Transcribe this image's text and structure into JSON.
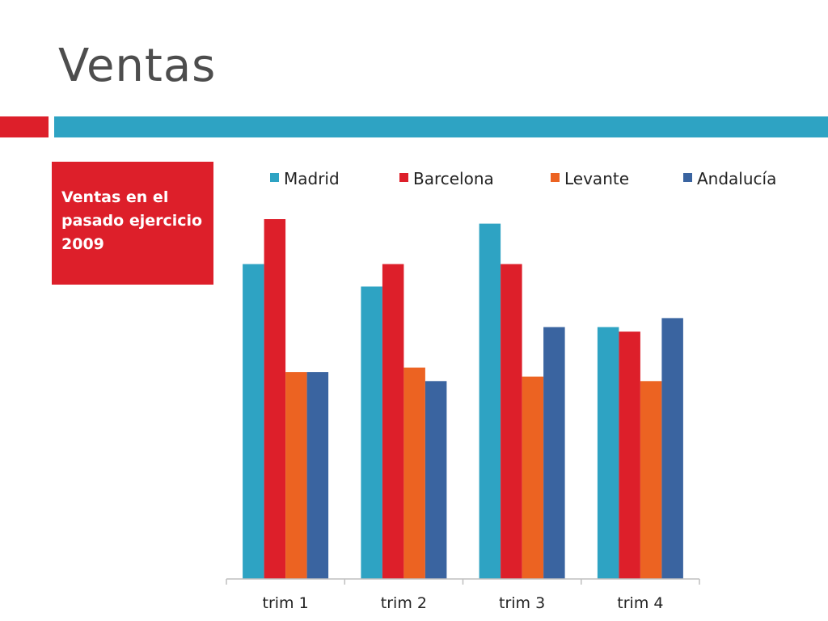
{
  "slide": {
    "title": "Ventas",
    "caption": "Ventas en el pasado ejercicio 2009"
  },
  "colors": {
    "title": "#4d4d4d",
    "accent_red": "#dd1f2a",
    "accent_teal": "#2ea3c3",
    "caption_bg": "#dd1f2a",
    "axis": "#bfbfbf"
  },
  "chart_data": {
    "type": "bar",
    "categories": [
      "trim 1",
      "trim 2",
      "trim 3",
      "trim 4"
    ],
    "series": [
      {
        "name": "Madrid",
        "color": "#2ea3c3",
        "values": [
          70,
          65,
          79,
          56
        ]
      },
      {
        "name": "Barcelona",
        "color": "#dd1f2a",
        "values": [
          80,
          70,
          70,
          55
        ]
      },
      {
        "name": "Levante",
        "color": "#ec6322",
        "values": [
          46,
          47,
          45,
          44
        ]
      },
      {
        "name": "Andalucía",
        "color": "#3a64a0",
        "values": [
          46,
          44,
          56,
          58
        ]
      }
    ],
    "ylim": [
      0,
      100
    ],
    "grid": false,
    "legend_position": "top",
    "title": "",
    "xlabel": "",
    "ylabel": ""
  }
}
